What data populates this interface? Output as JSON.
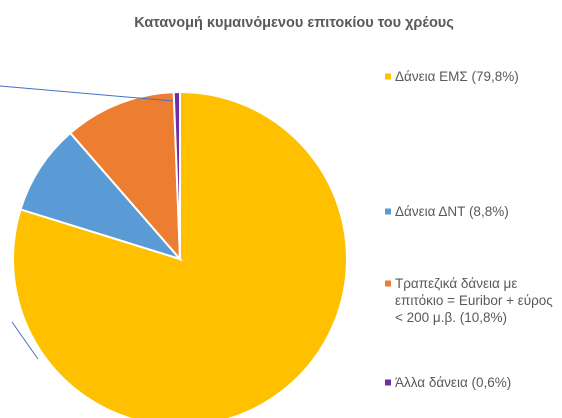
{
  "chart_data": {
    "type": "pie",
    "title": "Κατανομή κυμαινόμενου επιτοκίου του χρέους",
    "categories": [
      "Δάνεια ΕΜΣ",
      "Δάνεια ΔΝΤ",
      "Τραπεζικά δάνεια με επιτόκιο = Euribor + εύρος < 200 μ.β.",
      "Άλλα δάνεια"
    ],
    "values": [
      79.8,
      8.8,
      10.8,
      0.6
    ],
    "value_labels": [
      "(79,8%)",
      "(8,8%)",
      "(10,8%)",
      "(0,6%)"
    ],
    "colors": [
      "#ffc000",
      "#5b9bd5",
      "#ed7d31",
      "#7030a0"
    ],
    "legend": "right"
  }
}
